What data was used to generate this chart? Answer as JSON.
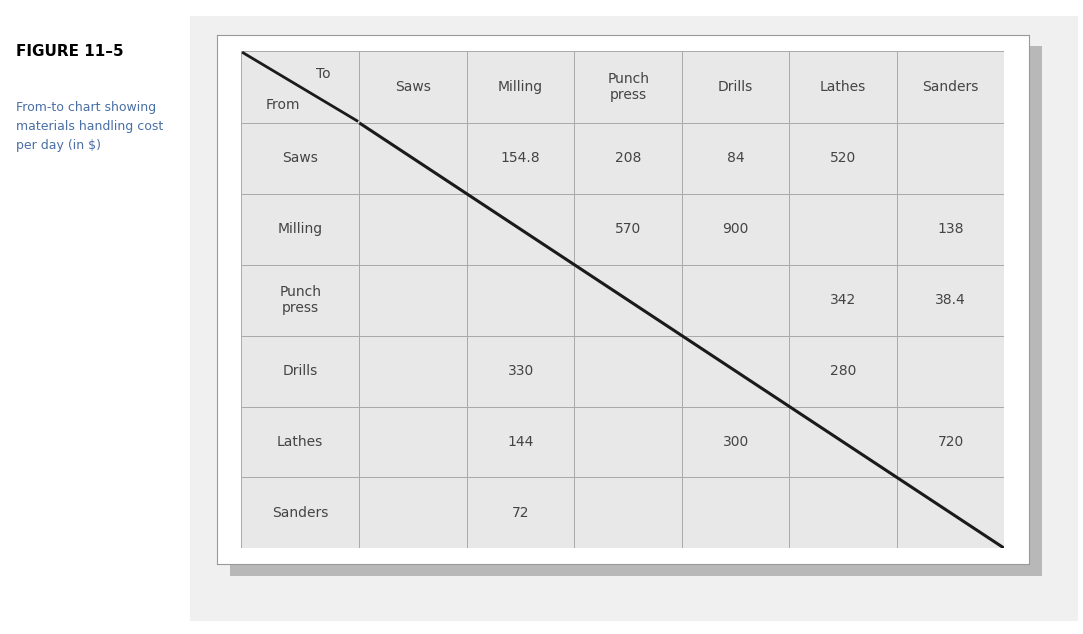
{
  "figure_title": "FIGURE 11–5",
  "figure_subtitle": "From-to chart showing\nmaterials handling cost\nper day (in $)",
  "col_headers": [
    "Saws",
    "Milling",
    "Punch\npress",
    "Drills",
    "Lathes",
    "Sanders"
  ],
  "row_headers": [
    "Saws",
    "Milling",
    "Punch\npress",
    "Drills",
    "Lathes",
    "Sanders"
  ],
  "header_corner_top": "To",
  "header_corner_bottom": "From",
  "table_data": [
    [
      "",
      "154.8",
      "208",
      "84",
      "520",
      ""
    ],
    [
      "",
      "",
      "570",
      "900",
      "",
      "138"
    ],
    [
      "",
      "",
      "",
      "",
      "342",
      "38.4"
    ],
    [
      "",
      "330",
      "",
      "",
      "280",
      ""
    ],
    [
      "",
      "144",
      "",
      "300",
      "",
      "720"
    ],
    [
      "",
      "72",
      "",
      "",
      "",
      ""
    ]
  ],
  "bg_page": "#f0f0f0",
  "bg_white": "#ffffff",
  "bg_table_fill": "#e8e8e8",
  "bg_shadow": "#b8b8b8",
  "cell_line_color": "#aaaaaa",
  "outer_border_color": "#999999",
  "diagonal_color": "#1a1a1a",
  "text_color": "#444444",
  "title_color": "#000000",
  "title_fontsize": 11,
  "subtitle_fontsize": 9,
  "cell_fontsize": 10,
  "header_fontsize": 10
}
